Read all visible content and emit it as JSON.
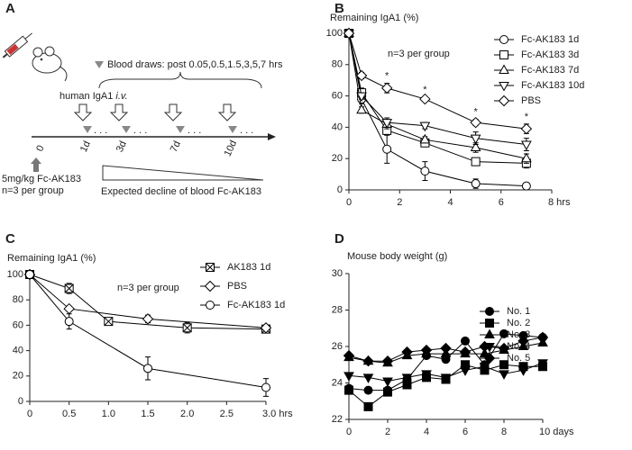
{
  "panel_labels": [
    "A",
    "B",
    "C",
    "D"
  ],
  "diagram": {
    "blood_draws": "Blood draws: post 0.05,0.5,1.5,3,5,7 hrs",
    "injection": "human IgA1",
    "injection_route": "i.v.",
    "dots": ". . .",
    "timepoints": [
      "0",
      "1d",
      "3d",
      "7d",
      "10d"
    ],
    "dose": "5mg/kg Fc-AK183",
    "group": "n=3 per group",
    "decline": "Expected decline of blood Fc-AK183"
  },
  "chart_data": [
    {
      "type": "line",
      "ylabel": "Remaining IgA1 (%)",
      "note": "n=3 per group",
      "x": [
        0,
        0.5,
        1.5,
        3,
        5,
        7
      ],
      "xlim": [
        0,
        8
      ],
      "xticks": [
        0,
        2,
        4,
        6,
        {
          "value": 8,
          "label": "8 hrs"
        }
      ],
      "ylim": [
        0,
        100
      ],
      "yticks": [
        0,
        20,
        40,
        60,
        80,
        100
      ],
      "significance": {
        "label": "*",
        "x": [
          1.5,
          3,
          5,
          7
        ]
      },
      "legend": "right",
      "series": [
        {
          "name": "Fc-AK183 1d",
          "color": "#000000",
          "marker": "circle",
          "fill": "#ffffff",
          "values": [
            100,
            58,
            26,
            12,
            4,
            2.5
          ],
          "errors": [
            0,
            3,
            9,
            6,
            3,
            2
          ]
        },
        {
          "name": "Fc-AK183 3d",
          "color": "#000000",
          "marker": "square",
          "fill": "#ffffff",
          "values": [
            100,
            62,
            38,
            30,
            18,
            17
          ],
          "errors": [
            0,
            3,
            3,
            2,
            1,
            3
          ]
        },
        {
          "name": "Fc-AK183 7d",
          "color": "#000000",
          "marker": "triangle-up",
          "fill": "#ffffff",
          "values": [
            100,
            51,
            42,
            32,
            27,
            20
          ],
          "errors": [
            0,
            2,
            3,
            2,
            3,
            3
          ]
        },
        {
          "name": "Fc-AK183 10d",
          "color": "#000000",
          "marker": "triangle-down",
          "fill": "#ffffff",
          "values": [
            100,
            60,
            43,
            41,
            33,
            29
          ],
          "errors": [
            0,
            2,
            3,
            2,
            4,
            4
          ]
        },
        {
          "name": "PBS",
          "color": "#000000",
          "marker": "diamond",
          "fill": "#ffffff",
          "values": [
            100,
            73,
            65,
            58,
            43,
            39
          ],
          "errors": [
            0,
            2,
            3,
            1,
            2,
            3
          ]
        }
      ]
    },
    {
      "type": "line",
      "ylabel": "Remaining IgA1 (%)",
      "note": "n=3 per group",
      "xlim": [
        0,
        3
      ],
      "xticks": [
        0,
        0.5,
        {
          "value": 1,
          "label": "1.0"
        },
        1.5,
        {
          "value": 2,
          "label": "2.0"
        },
        2.5,
        {
          "value": 3,
          "label": "3.0 hrs"
        }
      ],
      "ylim": [
        0,
        100
      ],
      "yticks": [
        0,
        20,
        40,
        60,
        80,
        100
      ],
      "legend": "right",
      "series": [
        {
          "name": "AK183 1d",
          "color": "#000000",
          "marker": "square-x",
          "fill": "#ffffff",
          "x": [
            0,
            0.5,
            1,
            2,
            3
          ],
          "values": [
            100,
            89,
            63,
            58,
            57
          ],
          "errors": [
            0,
            4,
            1,
            4,
            1
          ]
        },
        {
          "name": "PBS",
          "color": "#000000",
          "marker": "diamond",
          "fill": "#ffffff",
          "x": [
            0,
            0.5,
            1.5,
            3
          ],
          "values": [
            100,
            73,
            65,
            58
          ],
          "errors": [
            0,
            2,
            3,
            1
          ]
        },
        {
          "name": "Fc-AK183 1d",
          "color": "#000000",
          "marker": "circle",
          "fill": "#ffffff",
          "x": [
            0,
            0.5,
            1.5,
            3
          ],
          "values": [
            100,
            63,
            26,
            11
          ],
          "errors": [
            0,
            6,
            9,
            7
          ]
        }
      ]
    },
    {
      "type": "line",
      "ylabel": "Mouse body weight (g)",
      "x": [
        0,
        1,
        2,
        3,
        4,
        5,
        6,
        7,
        8,
        9,
        10
      ],
      "xlim": [
        0,
        10
      ],
      "xticks": [
        0,
        2,
        4,
        6,
        8,
        {
          "value": 10,
          "label": "10 days"
        }
      ],
      "ylim": [
        22,
        30
      ],
      "yticks": [
        22,
        24,
        26,
        28,
        30
      ],
      "legend": "right",
      "series": [
        {
          "name": "No. 1",
          "color": "#000000",
          "marker": "circle",
          "fill": "#000000",
          "values": [
            23.7,
            23.6,
            23.6,
            24.2,
            25.5,
            25.3,
            26.3,
            25.0,
            26.7,
            26.6,
            26.5
          ]
        },
        {
          "name": "No. 2",
          "color": "#000000",
          "marker": "square",
          "fill": "#000000",
          "values": [
            23.6,
            22.7,
            23.5,
            23.9,
            24.3,
            24.2,
            25.0,
            24.7,
            25.0,
            24.9,
            24.9
          ]
        },
        {
          "name": "No. 3",
          "color": "#000000",
          "marker": "triangle-up",
          "fill": "#000000",
          "values": [
            25.4,
            25.2,
            25.1,
            25.5,
            25.6,
            25.6,
            25.6,
            25.6,
            25.8,
            26.0,
            26.2
          ]
        },
        {
          "name": "No. 4",
          "color": "#000000",
          "marker": "triangle-down",
          "fill": "#000000",
          "values": [
            24.4,
            24.3,
            24.1,
            24.3,
            24.5,
            24.3,
            24.7,
            24.9,
            24.5,
            24.7,
            25.1
          ]
        },
        {
          "name": "No. 5",
          "color": "#000000",
          "marker": "diamond",
          "fill": "#000000",
          "values": [
            25.5,
            25.2,
            25.2,
            25.7,
            25.8,
            25.9,
            25.7,
            26.0,
            25.9,
            26.3,
            26.5
          ]
        }
      ]
    }
  ]
}
